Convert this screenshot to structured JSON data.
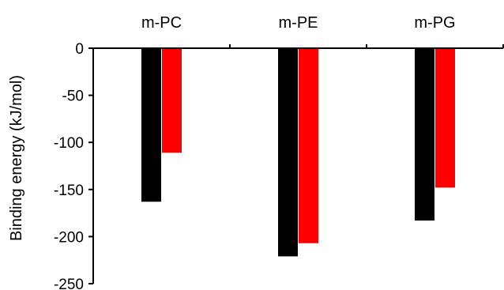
{
  "chart_data": {
    "type": "bar",
    "title": "",
    "xlabel": "",
    "ylabel": "Binding energy (kJ/mol)",
    "categories": [
      "m-PC",
      "m-PE",
      "m-PG"
    ],
    "series": [
      {
        "values": [
          -163,
          -221,
          -183
        ],
        "color": "#000000"
      },
      {
        "values": [
          -111,
          -207,
          -148
        ],
        "color": "#ff0000"
      }
    ],
    "ylim": [
      -250,
      0
    ],
    "yticks": [
      0,
      -50,
      -100,
      -150,
      -200,
      -250
    ],
    "ytick_labels": [
      "0",
      "-50",
      "-100",
      "-150",
      "-200",
      "-250"
    ],
    "xaxis_position": "top",
    "grid": false,
    "legend": "none"
  }
}
